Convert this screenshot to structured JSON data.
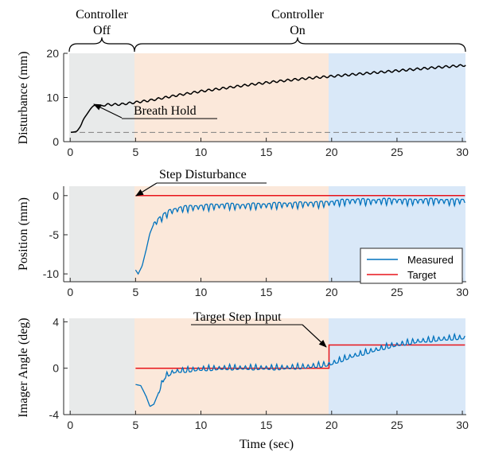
{
  "colors": {
    "off_region": "#e8eaea",
    "on_region_orange": "#fbe8da",
    "on_region_blue": "#d9e8f8",
    "measured": "#0072BD",
    "target": "#e8141b",
    "disturbance": "#000000",
    "baseline": "#808080"
  },
  "phase_labels": {
    "off": [
      "Controller",
      "Off"
    ],
    "on": [
      "Controller",
      "On"
    ]
  },
  "chart_data": [
    {
      "type": "line",
      "ylabel": "Disturbance (mm)",
      "xlabel": "",
      "xlim": [
        -0.5,
        30.3
      ],
      "ylim": [
        0,
        20
      ],
      "xticks": [
        0,
        5,
        10,
        15,
        20,
        25,
        30
      ],
      "yticks": [
        0,
        10,
        20
      ],
      "regions": [
        {
          "name": "Controller Off",
          "x": [
            0,
            5
          ],
          "color": "#e8eaea"
        },
        {
          "name": "Controller On",
          "x": [
            5,
            19.8
          ],
          "color": "#fbe8da"
        },
        {
          "name": "Controller On",
          "x": [
            19.8,
            30.2
          ],
          "color": "#d9e8f8"
        }
      ],
      "series": [
        {
          "kind": "disturbance",
          "x": [
            0.05,
            0.5,
            0.8,
            1.0,
            1.3,
            1.6,
            1.8,
            2.0,
            2.3,
            2.6,
            3.0,
            3.5,
            4.0,
            4.5,
            5.0,
            6.0,
            8.0,
            10.0,
            12.0,
            14.0,
            16.0,
            18.0,
            20.0,
            22.0,
            24.0,
            26.0,
            28.0,
            30.3
          ],
          "y": [
            2.1,
            2.3,
            3.5,
            5.0,
            6.3,
            7.6,
            8.2,
            8.3,
            8.1,
            8.3,
            8.4,
            8.4,
            8.5,
            8.7,
            8.9,
            9.3,
            10.4,
            11.4,
            12.2,
            13.0,
            13.7,
            14.3,
            14.8,
            15.3,
            15.8,
            16.3,
            16.8,
            17.3
          ]
        },
        {
          "kind": "baseline",
          "x": [
            0.05,
            30.2
          ],
          "y": [
            2.1,
            2.1
          ]
        }
      ],
      "annotations": [
        {
          "text": "Breath Hold",
          "arrow_to": [
            1.9,
            8.3
          ]
        }
      ]
    },
    {
      "type": "line",
      "ylabel": "Position (mm)",
      "xlabel": "",
      "xlim": [
        -0.5,
        30.3
      ],
      "ylim": [
        -11,
        1.2
      ],
      "xticks": [
        0,
        5,
        10,
        15,
        20,
        25,
        30
      ],
      "yticks": [
        -10,
        -5,
        0
      ],
      "legend": {
        "position": "bottom-right",
        "entries": [
          "Measured",
          "Target"
        ]
      },
      "series": [
        {
          "name": "Measured",
          "x": [
            5.0,
            5.2,
            5.5,
            5.8,
            6.1,
            6.4,
            6.8,
            7.2,
            7.6,
            8.0,
            8.5,
            9.0,
            10.0,
            11.0,
            12.0,
            13.0,
            14.0,
            15.0,
            16.0,
            17.0,
            18.0,
            19.0,
            19.8,
            21.0,
            22.0,
            23.0,
            24.0,
            25.0,
            26.0,
            27.0,
            28.0,
            29.0,
            30.2
          ],
          "y": [
            -9.5,
            -10.0,
            -9.0,
            -7.0,
            -4.8,
            -3.6,
            -3.0,
            -2.5,
            -2.0,
            -1.8,
            -1.6,
            -1.5,
            -1.4,
            -1.3,
            -1.2,
            -1.3,
            -1.2,
            -1.2,
            -1.1,
            -1.1,
            -1.0,
            -1.0,
            -0.9,
            -0.7,
            -0.6,
            -0.7,
            -0.6,
            -0.6,
            -0.7,
            -0.6,
            -0.6,
            -0.7,
            -0.6
          ],
          "oscillation": {
            "period": 0.4,
            "amplitude": 0.9,
            "start": 6.4
          }
        },
        {
          "name": "Target",
          "x": [
            5.0,
            30.2
          ],
          "y": [
            0,
            0
          ]
        }
      ],
      "annotations": [
        {
          "text": "Step Disturbance",
          "arrow_to": [
            5.0,
            0
          ]
        }
      ]
    },
    {
      "type": "line",
      "ylabel": "Imager Angle (deg)",
      "xlabel": "Time (sec)",
      "xlim": [
        -0.5,
        30.3
      ],
      "ylim": [
        -4,
        4.3
      ],
      "xticks": [
        0,
        5,
        10,
        15,
        20,
        25,
        30
      ],
      "yticks": [
        -4,
        0,
        4
      ],
      "series": [
        {
          "name": "Measured",
          "x": [
            5.0,
            5.4,
            5.8,
            6.1,
            6.4,
            6.8,
            7.2,
            7.6,
            8.0,
            9.0,
            10.0,
            12.0,
            14.0,
            16.0,
            18.0,
            19.8,
            20.5,
            21.5,
            22.5,
            23.5,
            24.5,
            25.5,
            26.5,
            27.5,
            28.5,
            29.5,
            30.2
          ],
          "y": [
            -1.4,
            -1.5,
            -2.4,
            -3.3,
            -3.1,
            -2.0,
            -0.8,
            -0.5,
            -0.3,
            -0.2,
            -0.1,
            0.0,
            0.0,
            0.0,
            0.1,
            0.3,
            0.6,
            1.0,
            1.3,
            1.6,
            1.9,
            2.1,
            2.3,
            2.4,
            2.5,
            2.6,
            2.6
          ],
          "oscillation": {
            "period": 0.4,
            "amplitude": 0.5,
            "start": 6.8
          }
        },
        {
          "name": "Target",
          "x": [
            5.0,
            19.8,
            19.8,
            30.2
          ],
          "y": [
            0,
            0,
            2,
            2
          ]
        }
      ],
      "annotations": [
        {
          "text": "Target Step Input",
          "arrow_to": [
            19.8,
            2.0
          ]
        }
      ]
    }
  ]
}
